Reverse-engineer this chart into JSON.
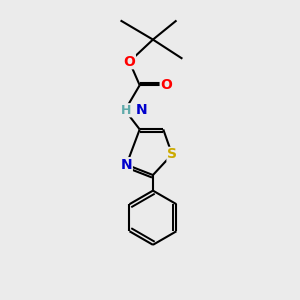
{
  "background_color": "#ebebeb",
  "bond_color": "#000000",
  "atom_colors": {
    "O": "#ff0000",
    "N": "#0000cc",
    "S": "#ccaa00",
    "H": "#5faaaa",
    "C": "#000000"
  },
  "font_size": 10,
  "figsize": [
    3.0,
    3.0
  ],
  "dpi": 100
}
